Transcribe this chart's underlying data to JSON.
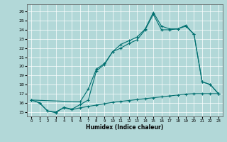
{
  "xlabel": "Humidex (Indice chaleur)",
  "xlim": [
    -0.5,
    23.5
  ],
  "ylim": [
    14.5,
    26.8
  ],
  "xticks": [
    0,
    1,
    2,
    3,
    4,
    5,
    6,
    7,
    8,
    9,
    10,
    11,
    12,
    13,
    14,
    15,
    16,
    17,
    18,
    19,
    20,
    21,
    22,
    23
  ],
  "yticks": [
    15,
    16,
    17,
    18,
    19,
    20,
    21,
    22,
    23,
    24,
    25,
    26
  ],
  "bg_color": "#b2d8d8",
  "grid_color": "#ffffff",
  "line_color": "#007070",
  "line1_x": [
    0,
    1,
    2,
    3,
    4,
    5,
    6,
    7,
    8,
    9,
    10,
    11,
    12,
    13,
    14,
    15,
    16,
    17,
    18,
    19,
    20,
    21,
    22,
    23
  ],
  "line1_y": [
    16.3,
    16.0,
    15.1,
    14.9,
    15.5,
    15.3,
    15.8,
    16.3,
    19.5,
    20.2,
    21.6,
    22.4,
    22.8,
    23.2,
    24.1,
    25.9,
    24.4,
    24.1,
    24.1,
    24.5,
    23.5,
    18.3,
    18.0,
    17.0
  ],
  "line2_x": [
    0,
    6,
    7,
    8,
    9,
    10,
    11,
    12,
    13,
    14,
    15,
    16,
    17,
    18,
    19,
    20,
    21,
    22,
    23
  ],
  "line2_y": [
    16.3,
    16.1,
    17.5,
    19.7,
    20.3,
    21.6,
    22.0,
    22.5,
    22.9,
    24.0,
    25.7,
    24.0,
    24.0,
    24.1,
    24.4,
    23.5,
    18.3,
    18.0,
    17.0
  ],
  "line3_x": [
    0,
    1,
    2,
    3,
    4,
    5,
    6,
    7,
    8,
    9,
    10,
    11,
    12,
    13,
    14,
    15,
    16,
    17,
    18,
    19,
    20,
    21,
    22,
    23
  ],
  "line3_y": [
    16.3,
    16.0,
    15.1,
    15.0,
    15.45,
    15.25,
    15.45,
    15.6,
    15.75,
    15.9,
    16.05,
    16.15,
    16.25,
    16.35,
    16.45,
    16.55,
    16.65,
    16.75,
    16.85,
    16.95,
    17.0,
    17.0,
    17.0,
    17.0
  ]
}
